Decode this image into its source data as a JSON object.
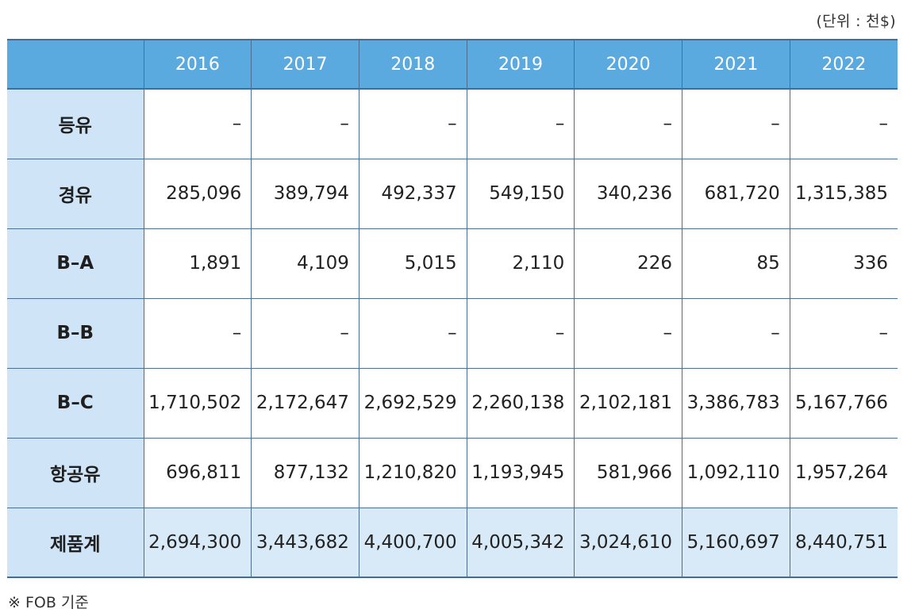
{
  "unit_note": "(단위 : 천$)",
  "table": {
    "corner": "",
    "years": [
      "2016",
      "2017",
      "2018",
      "2019",
      "2020",
      "2021",
      "2022"
    ],
    "rows": [
      {
        "label": "등유",
        "values": [
          "–",
          "–",
          "–",
          "–",
          "–",
          "–",
          "–"
        ]
      },
      {
        "label": "경유",
        "values": [
          "285,096",
          "389,794",
          "492,337",
          "549,150",
          "340,236",
          "681,720",
          "1,315,385"
        ]
      },
      {
        "label": "B–A",
        "values": [
          "1,891",
          "4,109",
          "5,015",
          "2,110",
          "226",
          "85",
          "336"
        ]
      },
      {
        "label": "B–B",
        "values": [
          "–",
          "–",
          "–",
          "–",
          "–",
          "–",
          "–"
        ]
      },
      {
        "label": "B–C",
        "values": [
          "1,710,502",
          "2,172,647",
          "2,692,529",
          "2,260,138",
          "2,102,181",
          "3,386,783",
          "5,167,766"
        ]
      },
      {
        "label": "항공유",
        "values": [
          "696,811",
          "877,132",
          "1,210,820",
          "1,193,945",
          "581,966",
          "1,092,110",
          "1,957,264"
        ]
      },
      {
        "label": "제품계",
        "values": [
          "2,694,300",
          "3,443,682",
          "4,400,700",
          "4,005,342",
          "3,024,610",
          "5,160,697",
          "8,440,751"
        ]
      }
    ]
  },
  "footnote": "※ FOB 기준",
  "colors": {
    "header_bg": "#5aa9df",
    "label_bg": "#cfe4f6",
    "total_bg": "#d8e9f7",
    "border": "#4a6f93"
  }
}
